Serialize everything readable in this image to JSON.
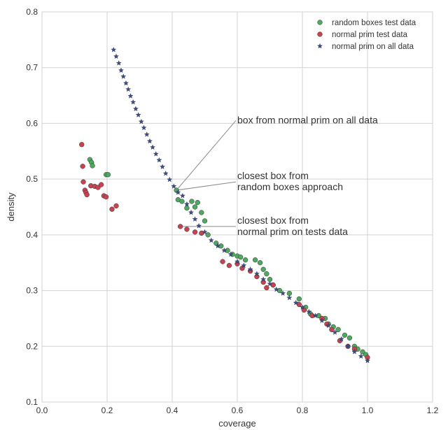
{
  "chart_data": {
    "type": "scatter",
    "title": "",
    "xlabel": "coverage",
    "ylabel": "density",
    "xlim": [
      0.0,
      1.2
    ],
    "ylim": [
      0.1,
      0.8
    ],
    "xticks": [
      "0.0",
      "0.2",
      "0.4",
      "0.6",
      "0.8",
      "1.0",
      "1.2"
    ],
    "yticks": [
      "0.1",
      "0.2",
      "0.3",
      "0.4",
      "0.5",
      "0.6",
      "0.7",
      "0.8"
    ],
    "grid": true,
    "legend_position": "top-right",
    "series": [
      {
        "name": "random boxes test data",
        "marker": "circle",
        "color": "#4ea860",
        "points": [
          [
            0.147,
            0.535
          ],
          [
            0.152,
            0.53
          ],
          [
            0.155,
            0.524
          ],
          [
            0.197,
            0.508
          ],
          [
            0.203,
            0.508
          ],
          [
            0.413,
            0.48
          ],
          [
            0.418,
            0.463
          ],
          [
            0.43,
            0.46
          ],
          [
            0.445,
            0.448
          ],
          [
            0.46,
            0.46
          ],
          [
            0.47,
            0.45
          ],
          [
            0.478,
            0.458
          ],
          [
            0.49,
            0.44
          ],
          [
            0.5,
            0.425
          ],
          [
            0.51,
            0.4
          ],
          [
            0.535,
            0.385
          ],
          [
            0.55,
            0.38
          ],
          [
            0.57,
            0.372
          ],
          [
            0.585,
            0.365
          ],
          [
            0.6,
            0.362
          ],
          [
            0.61,
            0.36
          ],
          [
            0.625,
            0.355
          ],
          [
            0.655,
            0.355
          ],
          [
            0.67,
            0.35
          ],
          [
            0.68,
            0.338
          ],
          [
            0.69,
            0.33
          ],
          [
            0.7,
            0.32
          ],
          [
            0.71,
            0.31
          ],
          [
            0.73,
            0.3
          ],
          [
            0.76,
            0.295
          ],
          [
            0.79,
            0.285
          ],
          [
            0.81,
            0.27
          ],
          [
            0.825,
            0.258
          ],
          [
            0.85,
            0.255
          ],
          [
            0.87,
            0.25
          ],
          [
            0.88,
            0.24
          ],
          [
            0.895,
            0.235
          ],
          [
            0.91,
            0.23
          ],
          [
            0.93,
            0.22
          ],
          [
            0.945,
            0.215
          ],
          [
            0.96,
            0.2
          ],
          [
            0.97,
            0.195
          ],
          [
            0.985,
            0.19
          ],
          [
            0.995,
            0.185
          ]
        ]
      },
      {
        "name": "normal prim test data",
        "marker": "circle",
        "color": "#c8424f",
        "points": [
          [
            0.122,
            0.562
          ],
          [
            0.125,
            0.523
          ],
          [
            0.127,
            0.495
          ],
          [
            0.132,
            0.48
          ],
          [
            0.135,
            0.476
          ],
          [
            0.138,
            0.472
          ],
          [
            0.15,
            0.488
          ],
          [
            0.162,
            0.487
          ],
          [
            0.172,
            0.485
          ],
          [
            0.182,
            0.49
          ],
          [
            0.19,
            0.47
          ],
          [
            0.197,
            0.468
          ],
          [
            0.215,
            0.446
          ],
          [
            0.228,
            0.452
          ],
          [
            0.425,
            0.415
          ],
          [
            0.445,
            0.41
          ],
          [
            0.47,
            0.405
          ],
          [
            0.49,
            0.403
          ],
          [
            0.555,
            0.352
          ],
          [
            0.575,
            0.345
          ],
          [
            0.6,
            0.348
          ],
          [
            0.615,
            0.34
          ],
          [
            0.64,
            0.335
          ],
          [
            0.66,
            0.325
          ],
          [
            0.68,
            0.315
          ],
          [
            0.69,
            0.305
          ],
          [
            0.71,
            0.31
          ],
          [
            0.79,
            0.275
          ],
          [
            0.805,
            0.265
          ],
          [
            0.83,
            0.255
          ],
          [
            0.86,
            0.25
          ],
          [
            0.875,
            0.24
          ],
          [
            0.89,
            0.23
          ],
          [
            0.915,
            0.21
          ],
          [
            0.94,
            0.2
          ],
          [
            0.96,
            0.195
          ],
          [
            1.0,
            0.18
          ]
        ]
      },
      {
        "name": "normal prim on all data",
        "marker": "star",
        "color": "#3c4e86",
        "points": [
          [
            0.22,
            0.732
          ],
          [
            0.228,
            0.72
          ],
          [
            0.236,
            0.708
          ],
          [
            0.243,
            0.695
          ],
          [
            0.25,
            0.684
          ],
          [
            0.258,
            0.672
          ],
          [
            0.265,
            0.661
          ],
          [
            0.272,
            0.649
          ],
          [
            0.28,
            0.638
          ],
          [
            0.288,
            0.626
          ],
          [
            0.296,
            0.615
          ],
          [
            0.305,
            0.603
          ],
          [
            0.313,
            0.592
          ],
          [
            0.322,
            0.58
          ],
          [
            0.331,
            0.568
          ],
          [
            0.34,
            0.557
          ],
          [
            0.35,
            0.545
          ],
          [
            0.36,
            0.534
          ],
          [
            0.37,
            0.522
          ],
          [
            0.38,
            0.51
          ],
          [
            0.392,
            0.499
          ],
          [
            0.405,
            0.487
          ],
          [
            0.418,
            0.476
          ],
          [
            0.432,
            0.47
          ],
          [
            0.445,
            0.455
          ],
          [
            0.458,
            0.44
          ],
          [
            0.47,
            0.428
          ],
          [
            0.482,
            0.416
          ],
          [
            0.5,
            0.405
          ],
          [
            0.52,
            0.39
          ],
          [
            0.54,
            0.38
          ],
          [
            0.56,
            0.372
          ],
          [
            0.58,
            0.365
          ],
          [
            0.6,
            0.352
          ],
          [
            0.62,
            0.345
          ],
          [
            0.64,
            0.338
          ],
          [
            0.66,
            0.33
          ],
          [
            0.68,
            0.32
          ],
          [
            0.7,
            0.312
          ],
          [
            0.72,
            0.302
          ],
          [
            0.74,
            0.295
          ],
          [
            0.76,
            0.287
          ],
          [
            0.78,
            0.278
          ],
          [
            0.8,
            0.27
          ],
          [
            0.82,
            0.262
          ],
          [
            0.84,
            0.255
          ],
          [
            0.86,
            0.246
          ],
          [
            0.88,
            0.237
          ],
          [
            0.9,
            0.225
          ],
          [
            0.92,
            0.213
          ],
          [
            0.94,
            0.2
          ],
          [
            0.96,
            0.19
          ],
          [
            0.98,
            0.182
          ],
          [
            1.0,
            0.174
          ]
        ]
      }
    ],
    "annotations": [
      {
        "lines": [
          "box from normal prim on all data"
        ],
        "text_at": [
          0.6,
          0.6
        ],
        "arrow_to": [
          0.41,
          0.478
        ]
      },
      {
        "lines": [
          "closest box from",
          "random boxes approach"
        ],
        "text_at": [
          0.6,
          0.5
        ],
        "arrow_to": [
          0.413,
          0.48
        ]
      },
      {
        "lines": [
          "closest box from",
          "normal prim on tests data"
        ],
        "text_at": [
          0.6,
          0.42
        ],
        "arrow_to": [
          0.425,
          0.415
        ]
      }
    ]
  }
}
